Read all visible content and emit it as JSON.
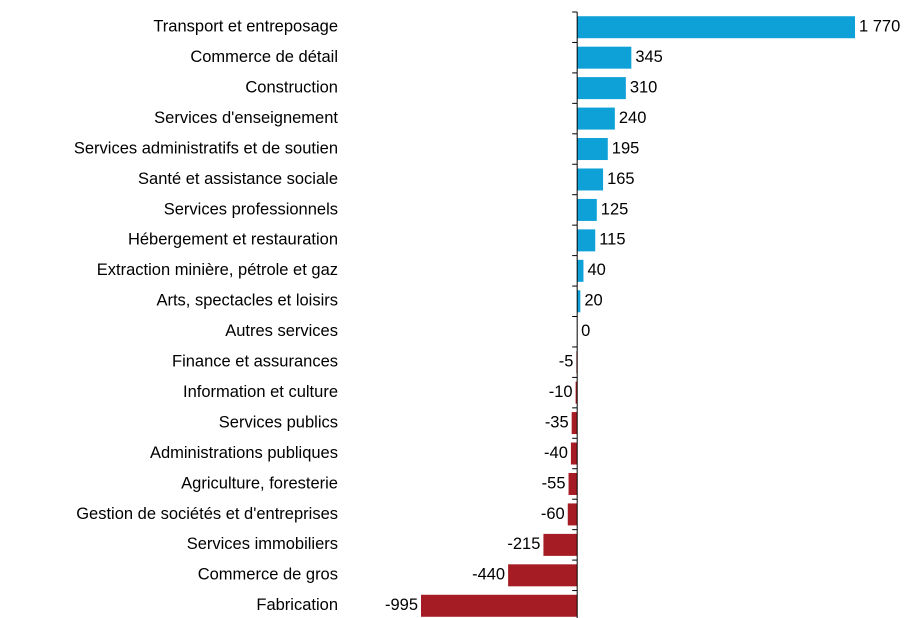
{
  "chart_data": {
    "type": "hbar",
    "categories": [
      "Transport et entreposage",
      "Commerce de détail",
      "Construction",
      "Services d'enseignement",
      "Services administratifs et de soutien",
      "Santé et assistance sociale",
      "Services professionnels",
      "Hébergement et restauration",
      "Extraction minière, pétrole et gaz",
      "Arts, spectacles et loisirs",
      "Autres services",
      "Finance et assurances",
      "Information et culture",
      "Services publics",
      "Administrations publiques",
      "Agriculture, foresterie",
      "Gestion de sociétés et d'entreprises",
      "Services immobiliers",
      "Commerce de gros",
      "Fabrication"
    ],
    "values": [
      1770,
      345,
      310,
      240,
      195,
      165,
      125,
      115,
      40,
      20,
      0,
      -5,
      -10,
      -35,
      -40,
      -55,
      -60,
      -215,
      -440,
      -995
    ],
    "value_labels": [
      "1 770",
      "345",
      "310",
      "240",
      "195",
      "165",
      "125",
      "115",
      "40",
      "20",
      "0",
      "-5",
      "-10",
      "-35",
      "-40",
      "-55",
      "-60",
      "-215",
      "-440",
      "-995"
    ],
    "color_positive": "#0ea1d8",
    "color_negative": "#a51c24"
  }
}
